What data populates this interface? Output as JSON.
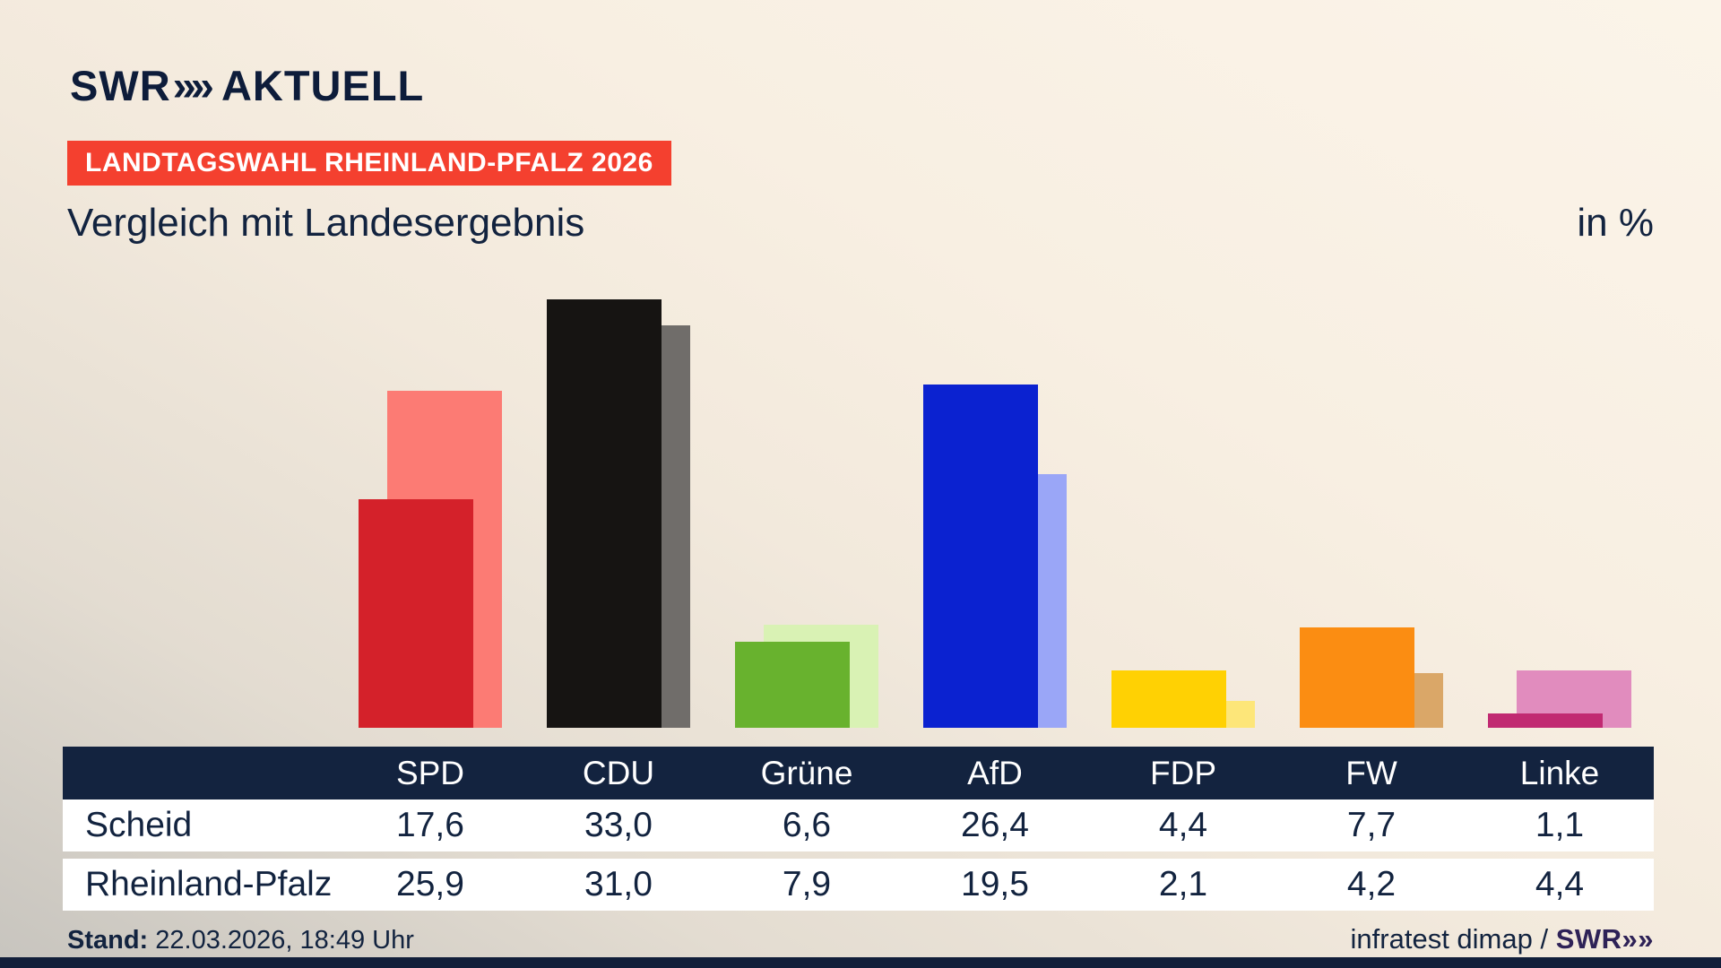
{
  "brand": {
    "logo_text": "SWR",
    "logo_chevrons": "»»",
    "logo_suffix": "AKTUELL"
  },
  "badge": {
    "label": "LANDTAGSWAHL RHEINLAND-PFALZ 2026",
    "bg": "#f4402f"
  },
  "title": "Vergleich mit Landesergebnis",
  "unit_label": "in %",
  "chart_data": {
    "type": "bar",
    "categories": [
      "SPD",
      "CDU",
      "Grüne",
      "AfD",
      "FDP",
      "FW",
      "Linke"
    ],
    "series": [
      {
        "name": "Scheid",
        "values": [
          17.6,
          33.0,
          6.6,
          26.4,
          4.4,
          7.7,
          1.1
        ]
      },
      {
        "name": "Rheinland-Pfalz",
        "values": [
          25.9,
          31.0,
          7.9,
          19.5,
          2.1,
          4.2,
          4.4
        ]
      }
    ],
    "colors": {
      "scheid": [
        "#d4212a",
        "#161412",
        "#68b22e",
        "#0b22d0",
        "#ffd103",
        "#fb8d12",
        "#c12a72"
      ],
      "rheinland_pfalz": [
        "#fc7b74",
        "#706d6a",
        "#d9f2b4",
        "#9aa6f7",
        "#fde679",
        "#daa768",
        "#e18cbe"
      ]
    },
    "title": "Vergleich mit Landesergebnis",
    "xlabel": "",
    "ylabel": "in %",
    "ylim": [
      0,
      35
    ],
    "grid": false,
    "legend_position": "table-below"
  },
  "table": {
    "columns": [
      "SPD",
      "CDU",
      "Grüne",
      "AfD",
      "FDP",
      "FW",
      "Linke"
    ],
    "rows": [
      {
        "label": "Scheid",
        "values": [
          "17,6",
          "33,0",
          "6,6",
          "26,4",
          "4,4",
          "7,7",
          "1,1"
        ]
      },
      {
        "label": "Rheinland-Pfalz",
        "values": [
          "25,9",
          "31,0",
          "7,9",
          "19,5",
          "2,1",
          "4,2",
          "4,4"
        ]
      }
    ]
  },
  "footer": {
    "stand_label": "Stand:",
    "stand_value": " 22.03.2026, 18:49 Uhr",
    "source_text": "infratest dimap / ",
    "source_brand": "SWR»»"
  },
  "theme": {
    "navy": "#13233f",
    "badge_red": "#f4402f",
    "background_cream": "#f8efe2",
    "background_gray": "#c7c4be",
    "brand_violet": "#2e2257"
  }
}
